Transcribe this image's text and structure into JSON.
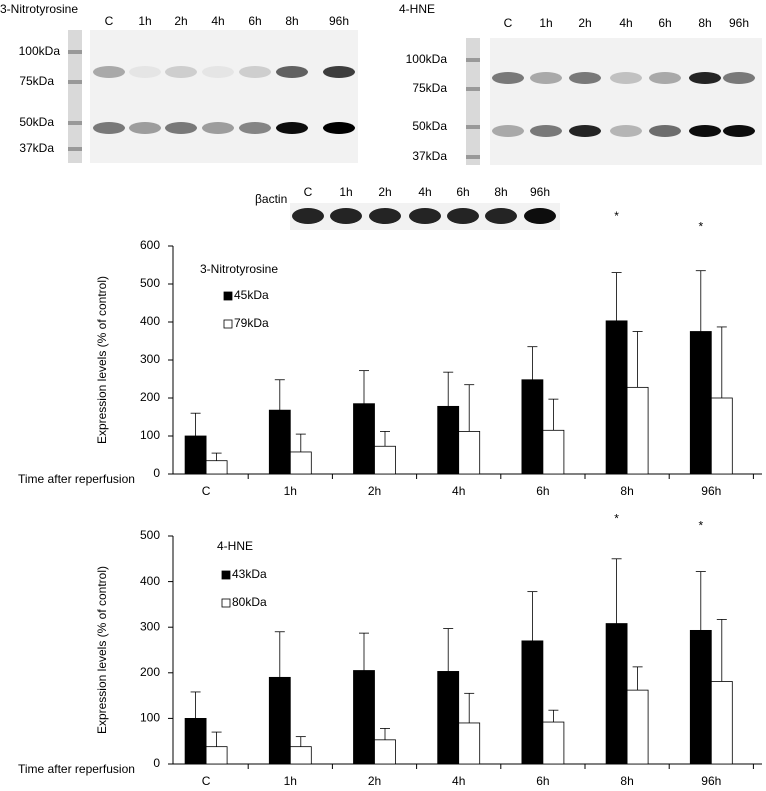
{
  "blots": [
    {
      "title": "3-Nitrotyrosine",
      "lanes": [
        "C",
        "1h",
        "2h",
        "4h",
        "6h",
        "8h",
        "96h"
      ],
      "markers": [
        "100kDa",
        "75kDa",
        "50kDa",
        "37kDa"
      ]
    },
    {
      "title": "4-HNE",
      "lanes": [
        "C",
        "1h",
        "2h",
        "4h",
        "6h",
        "8h",
        "96h"
      ],
      "markers": [
        "100kDa",
        "75kDa",
        "50kDa",
        "37kDa"
      ]
    },
    {
      "title": "βactin",
      "lanes": [
        "C",
        "1h",
        "2h",
        "4h",
        "6h",
        "8h",
        "96h"
      ]
    }
  ],
  "chart_data": [
    {
      "type": "bar",
      "title": "3-Nitrotyrosine",
      "y_label": "Expression levels  (% of control)",
      "x_label": "Time after reperfusion",
      "categories": [
        "C",
        "1h",
        "2h",
        "4h",
        "6h",
        "8h",
        "96h"
      ],
      "series": [
        {
          "name": "45kDa",
          "color": "#000000",
          "values": [
            100,
            168,
            185,
            178,
            248,
            403,
            375
          ],
          "errors": [
            60,
            80,
            87,
            90,
            87,
            127,
            160
          ],
          "markers": [
            null,
            null,
            null,
            null,
            null,
            "*",
            "*"
          ]
        },
        {
          "name": "79kDa",
          "color": "#ffffff",
          "values": [
            35,
            58,
            73,
            112,
            115,
            228,
            200
          ],
          "errors": [
            20,
            47,
            39,
            123,
            82,
            147,
            187
          ]
        }
      ],
      "ylim": [
        0,
        600
      ],
      "yticks": [
        0,
        100,
        200,
        300,
        400,
        500,
        600
      ]
    },
    {
      "type": "bar",
      "title": "4-HNE",
      "y_label": "Expression levels  (% of control)",
      "x_label": "Time after reperfusion",
      "categories": [
        "C",
        "1h",
        "2h",
        "4h",
        "6h",
        "8h",
        "96h"
      ],
      "series": [
        {
          "name": "43kDa",
          "color": "#000000",
          "values": [
            100,
            190,
            205,
            203,
            270,
            308,
            293
          ],
          "errors": [
            58,
            100,
            82,
            94,
            108,
            142,
            129
          ],
          "markers": [
            null,
            null,
            null,
            null,
            null,
            "*",
            "*"
          ]
        },
        {
          "name": "80kDa",
          "color": "#ffffff",
          "values": [
            38,
            38,
            53,
            90,
            92,
            162,
            181
          ],
          "errors": [
            32,
            22,
            25,
            65,
            26,
            51,
            136
          ]
        }
      ],
      "ylim": [
        0,
        500
      ],
      "yticks": [
        0,
        100,
        200,
        300,
        400,
        500
      ]
    }
  ]
}
